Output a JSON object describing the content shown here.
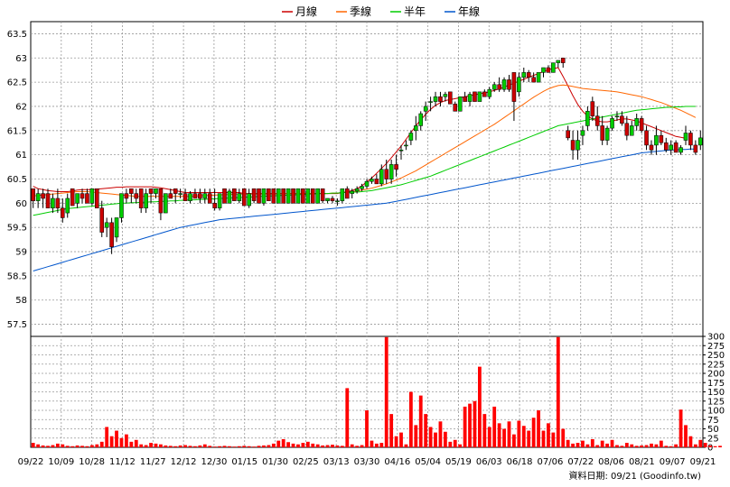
{
  "legend": [
    {
      "label": "月線",
      "color": "#cc0000"
    },
    {
      "label": "季線",
      "color": "#ff6600"
    },
    {
      "label": "半年",
      "color": "#00cc00"
    },
    {
      "label": "年線",
      "color": "#0055cc"
    }
  ],
  "source": "資料日期: 09/21 (Goodinfo.tw)",
  "chart_data": {
    "type": "candlestick+line+bar",
    "price_axis": {
      "ylim": [
        57.25,
        63.75
      ],
      "ticks": [
        57.5,
        58,
        58.5,
        59,
        59.5,
        60,
        60.5,
        61,
        61.5,
        62,
        62.5,
        63,
        63.5
      ]
    },
    "volume_axis": {
      "ylim": [
        0,
        300
      ],
      "ticks": [
        0,
        25,
        50,
        75,
        100,
        125,
        150,
        175,
        200,
        225,
        250,
        275,
        300
      ]
    },
    "x_labels": [
      "09/22",
      "10/09",
      "10/28",
      "11/12",
      "11/27",
      "12/12",
      "12/30",
      "01/15",
      "01/30",
      "02/25",
      "03/13",
      "03/30",
      "04/16",
      "05/04",
      "05/19",
      "06/03",
      "06/18",
      "07/06",
      "07/22",
      "08/06",
      "08/21",
      "09/07",
      "09/21"
    ],
    "grid": true,
    "up_color": "#00cc00",
    "down_color": "#cc0000",
    "volume_color": "#ff0000",
    "candles": [
      [
        60.3,
        60.3,
        59.9,
        60.05
      ],
      [
        60.05,
        60.3,
        59.9,
        60.2
      ],
      [
        60.2,
        60.3,
        59.9,
        60.1
      ],
      [
        60.2,
        60.3,
        59.9,
        59.9
      ],
      [
        59.9,
        60.2,
        59.8,
        60.1
      ],
      [
        60.1,
        60.3,
        59.8,
        59.9
      ],
      [
        59.9,
        60.1,
        59.6,
        59.7
      ],
      [
        59.8,
        60.2,
        59.7,
        60.1
      ],
      [
        60.3,
        60.3,
        59.95,
        59.95
      ],
      [
        60.0,
        60.2,
        59.9,
        60.2
      ],
      [
        60.2,
        60.3,
        60.0,
        60.1
      ],
      [
        60.2,
        60.3,
        60.0,
        60.0
      ],
      [
        60.0,
        60.3,
        59.95,
        60.3
      ],
      [
        60.3,
        60.3,
        59.9,
        59.9
      ],
      [
        59.9,
        60.05,
        59.3,
        59.4
      ],
      [
        59.5,
        59.7,
        59.3,
        59.6
      ],
      [
        59.6,
        59.7,
        58.95,
        59.1
      ],
      [
        59.3,
        59.7,
        59.2,
        59.7
      ],
      [
        59.7,
        60.2,
        59.6,
        60.2
      ],
      [
        60.2,
        60.3,
        60.0,
        60.1
      ],
      [
        60.3,
        60.3,
        60.0,
        60.2
      ],
      [
        60.2,
        60.3,
        60.0,
        60.1
      ],
      [
        60.3,
        60.3,
        59.8,
        59.9
      ],
      [
        59.9,
        60.3,
        59.8,
        60.2
      ],
      [
        60.3,
        60.3,
        60.0,
        60.2
      ],
      [
        60.2,
        60.3,
        60.1,
        60.3
      ],
      [
        60.3,
        60.3,
        59.65,
        59.8
      ],
      [
        59.8,
        60.2,
        59.8,
        60.2
      ],
      [
        60.2,
        60.3,
        60.1,
        60.1
      ],
      [
        60.3,
        60.3,
        60.0,
        60.2
      ],
      [
        60.2,
        60.3,
        60.1,
        60.2
      ],
      [
        60.2,
        60.3,
        60.05,
        60.05
      ],
      [
        60.05,
        60.25,
        60.0,
        60.2
      ],
      [
        60.2,
        60.3,
        60.1,
        60.1
      ],
      [
        60.2,
        60.3,
        60.0,
        60.1
      ],
      [
        60.1,
        60.3,
        60.0,
        60.2
      ],
      [
        60.2,
        60.3,
        60.0,
        60.0
      ],
      [
        60.0,
        60.3,
        59.85,
        59.9
      ],
      [
        59.9,
        60.2,
        59.85,
        60.2
      ],
      [
        60.3,
        60.3,
        60.0,
        60.0
      ],
      [
        60.0,
        60.3,
        60.0,
        60.25
      ],
      [
        60.3,
        60.3,
        60.05,
        60.05
      ],
      [
        60.05,
        60.3,
        60.0,
        60.2
      ],
      [
        60.3,
        60.3,
        59.95,
        59.95
      ],
      [
        59.95,
        60.3,
        59.9,
        60.2
      ],
      [
        60.3,
        60.3,
        60.0,
        60.05
      ],
      [
        60.3,
        60.3,
        60.0,
        60.0
      ],
      [
        60.0,
        60.3,
        59.95,
        60.3
      ],
      [
        60.3,
        60.3,
        60.05,
        60.05
      ],
      [
        60.3,
        60.3,
        60.0,
        60.0
      ],
      [
        60.0,
        60.3,
        60.0,
        60.3
      ],
      [
        60.3,
        60.3,
        60.0,
        60.0
      ],
      [
        60.0,
        60.3,
        60.0,
        60.3
      ],
      [
        60.3,
        60.3,
        60.0,
        60.0
      ],
      [
        60.0,
        60.3,
        60.0,
        60.3
      ],
      [
        60.3,
        60.3,
        60.0,
        60.0
      ],
      [
        60.0,
        60.3,
        60.0,
        60.3
      ],
      [
        60.3,
        60.3,
        60.0,
        60.0
      ],
      [
        60.0,
        60.3,
        60.0,
        60.3
      ],
      [
        60.3,
        60.3,
        60.0,
        60.05
      ],
      [
        60.05,
        60.1,
        60.0,
        60.1
      ],
      [
        60.1,
        60.15,
        60.0,
        60.05
      ],
      [
        60.05,
        60.1,
        59.95,
        60.05
      ],
      [
        60.05,
        60.3,
        60.0,
        60.3
      ],
      [
        60.3,
        60.35,
        60.1,
        60.1
      ],
      [
        60.2,
        60.3,
        60.1,
        60.25
      ],
      [
        60.25,
        60.35,
        60.2,
        60.3
      ],
      [
        60.3,
        60.4,
        60.25,
        60.35
      ],
      [
        60.35,
        60.5,
        60.3,
        60.45
      ],
      [
        60.45,
        60.55,
        60.4,
        60.5
      ],
      [
        60.5,
        60.6,
        60.4,
        60.4
      ],
      [
        60.4,
        60.8,
        60.35,
        60.7
      ],
      [
        60.7,
        60.9,
        60.4,
        60.5
      ],
      [
        60.5,
        60.9,
        60.4,
        60.8
      ],
      [
        60.8,
        61.0,
        60.55,
        60.7
      ],
      [
        61.1,
        61.2,
        60.9,
        61.1
      ],
      [
        61.2,
        61.3,
        61.1,
        61.2
      ],
      [
        61.3,
        61.5,
        61.2,
        61.45
      ],
      [
        61.5,
        61.8,
        61.3,
        61.6
      ],
      [
        61.6,
        61.9,
        61.5,
        61.85
      ],
      [
        61.9,
        62.1,
        61.7,
        62.0
      ],
      [
        62.1,
        62.2,
        61.9,
        62.1
      ],
      [
        62.1,
        62.3,
        62.0,
        62.2
      ],
      [
        62.2,
        62.3,
        62.0,
        62.1
      ],
      [
        62.2,
        62.3,
        62.1,
        62.25
      ],
      [
        62.3,
        62.3,
        62.05,
        62.05
      ],
      [
        62.05,
        62.1,
        61.9,
        61.9
      ],
      [
        61.9,
        62.2,
        61.9,
        62.2
      ],
      [
        62.2,
        62.3,
        62.1,
        62.1
      ],
      [
        62.1,
        62.3,
        62.0,
        62.25
      ],
      [
        62.3,
        62.3,
        62.1,
        62.1
      ],
      [
        62.1,
        62.3,
        62.1,
        62.3
      ],
      [
        62.3,
        62.35,
        62.2,
        62.2
      ],
      [
        62.2,
        62.4,
        62.15,
        62.35
      ],
      [
        62.35,
        62.5,
        62.3,
        62.45
      ],
      [
        62.45,
        62.6,
        62.3,
        62.35
      ],
      [
        62.35,
        62.6,
        62.3,
        62.55
      ],
      [
        62.55,
        62.65,
        62.3,
        62.35
      ],
      [
        62.7,
        62.7,
        61.7,
        62.1
      ],
      [
        62.3,
        62.7,
        62.2,
        62.6
      ],
      [
        62.6,
        62.8,
        62.5,
        62.7
      ],
      [
        62.7,
        62.75,
        62.5,
        62.6
      ],
      [
        62.6,
        62.7,
        62.5,
        62.5
      ],
      [
        62.5,
        62.7,
        62.5,
        62.7
      ],
      [
        62.7,
        62.8,
        62.6,
        62.8
      ],
      [
        62.8,
        62.85,
        62.7,
        62.7
      ],
      [
        62.7,
        62.9,
        62.7,
        62.9
      ],
      [
        62.9,
        62.95,
        62.8,
        62.95
      ],
      [
        63.0,
        63.0,
        62.8,
        62.9
      ],
      [
        61.5,
        61.6,
        61.3,
        61.35
      ],
      [
        61.3,
        61.5,
        60.9,
        61.1
      ],
      [
        61.1,
        61.5,
        60.9,
        61.3
      ],
      [
        61.4,
        61.6,
        61.2,
        61.5
      ],
      [
        61.6,
        62.0,
        61.5,
        61.9
      ],
      [
        62.1,
        62.2,
        61.7,
        61.8
      ],
      [
        61.8,
        62.0,
        61.5,
        61.6
      ],
      [
        61.6,
        61.8,
        61.2,
        61.3
      ],
      [
        61.3,
        61.6,
        61.2,
        61.55
      ],
      [
        61.55,
        61.8,
        61.5,
        61.75
      ],
      [
        61.8,
        61.9,
        61.7,
        61.8
      ],
      [
        61.8,
        61.9,
        61.6,
        61.65
      ],
      [
        61.65,
        61.8,
        61.3,
        61.4
      ],
      [
        61.4,
        61.7,
        61.4,
        61.6
      ],
      [
        61.6,
        61.85,
        61.5,
        61.75
      ],
      [
        61.75,
        61.8,
        61.45,
        61.5
      ],
      [
        61.5,
        61.6,
        61.1,
        61.2
      ],
      [
        61.2,
        61.3,
        61.0,
        61.1
      ],
      [
        61.2,
        61.6,
        61.0,
        61.4
      ],
      [
        61.4,
        61.5,
        61.2,
        61.25
      ],
      [
        61.25,
        61.35,
        61.05,
        61.1
      ],
      [
        61.1,
        61.3,
        61.0,
        61.2
      ],
      [
        61.25,
        61.3,
        61.05,
        61.05
      ],
      [
        61.05,
        61.2,
        61.0,
        61.15
      ],
      [
        61.3,
        61.6,
        61.2,
        61.45
      ],
      [
        61.45,
        61.5,
        61.1,
        61.2
      ],
      [
        61.2,
        61.3,
        61.0,
        61.05
      ],
      [
        61.2,
        61.5,
        61.1,
        61.35
      ]
    ],
    "ma20": [
      60.35,
      60.3,
      60.28,
      60.26,
      60.25,
      60.24,
      60.24,
      60.24,
      60.25,
      60.27,
      60.28,
      60.28,
      60.28,
      60.29,
      60.3,
      60.31,
      60.32,
      60.33,
      60.33,
      60.34,
      60.34,
      60.34,
      60.34,
      60.34,
      60.34,
      60.33,
      60.32,
      60.3,
      60.28,
      60.26,
      60.24,
      60.22,
      60.22,
      60.22,
      60.22,
      60.22,
      60.22,
      60.22,
      60.22,
      60.22,
      60.22,
      60.22,
      60.22,
      60.2,
      60.2,
      60.2,
      60.2,
      60.2,
      60.2,
      60.2,
      60.2,
      60.2,
      60.2,
      60.2,
      60.2,
      60.2,
      60.2,
      60.2,
      60.2,
      60.2,
      60.2,
      60.2,
      60.2,
      60.22,
      60.24,
      60.26,
      60.3,
      60.36,
      60.44,
      60.52,
      60.62,
      60.72,
      60.82,
      60.94,
      61.06,
      61.18,
      61.32,
      61.46,
      61.6,
      61.72,
      61.84,
      61.94,
      62.02,
      62.08,
      62.12,
      62.14,
      62.16,
      62.18,
      62.2,
      62.22,
      62.24,
      62.26,
      62.28,
      62.3,
      62.33,
      62.36,
      62.4,
      62.44,
      62.48,
      62.52,
      62.56,
      62.6,
      62.64,
      62.68,
      62.72,
      62.76,
      62.78,
      62.8,
      62.62,
      62.42,
      62.22,
      62.04,
      61.9,
      61.8,
      61.74,
      61.7,
      61.68,
      61.68,
      61.7,
      61.72,
      61.74,
      61.74,
      61.72,
      61.7,
      61.66,
      61.62,
      61.58,
      61.54,
      61.5,
      61.46,
      61.42,
      61.38,
      61.36,
      61.34
    ],
    "ma60": [
      60.15,
      60.16,
      60.17,
      60.18,
      60.19,
      60.2,
      60.21,
      60.22,
      60.23,
      60.24,
      60.24,
      60.24,
      60.23,
      60.22,
      60.21,
      60.2,
      60.19,
      60.18,
      60.17,
      60.16,
      60.15,
      60.14,
      60.14,
      60.14,
      60.14,
      60.14,
      60.14,
      60.14,
      60.14,
      60.14,
      60.14,
      60.14,
      60.14,
      60.15,
      60.15,
      60.16,
      60.16,
      60.17,
      60.17,
      60.18,
      60.18,
      60.19,
      60.19,
      60.19,
      60.19,
      60.19,
      60.19,
      60.19,
      60.19,
      60.19,
      60.19,
      60.2,
      60.2,
      60.2,
      60.2,
      60.2,
      60.2,
      60.2,
      60.2,
      60.2,
      60.2,
      60.21,
      60.21,
      60.22,
      60.23,
      60.24,
      60.25,
      60.27,
      60.29,
      60.31,
      60.34,
      60.37,
      60.4,
      60.44,
      60.48,
      60.52,
      60.57,
      60.62,
      60.67,
      60.73,
      60.79,
      60.85,
      60.91,
      60.97,
      61.03,
      61.09,
      61.15,
      61.21,
      61.27,
      61.33,
      61.39,
      61.45,
      61.51,
      61.57,
      61.63,
      61.7,
      61.77,
      61.84,
      61.91,
      61.98,
      62.05,
      62.12,
      62.19,
      62.25,
      62.31,
      62.36,
      62.4,
      62.43,
      62.44,
      62.43,
      62.41,
      62.39,
      62.37,
      62.36,
      62.35,
      62.34,
      62.33,
      62.32,
      62.31,
      62.3,
      62.28,
      62.26,
      62.24,
      62.22,
      62.2,
      62.17,
      62.14,
      62.11,
      62.08,
      62.04,
      62.0,
      61.96,
      61.92,
      61.87,
      61.82,
      61.77
    ],
    "ma120": [
      59.75,
      59.77,
      59.79,
      59.81,
      59.83,
      59.85,
      59.87,
      59.89,
      59.9,
      59.91,
      59.92,
      59.93,
      59.94,
      59.95,
      59.96,
      59.97,
      59.98,
      59.99,
      60.0,
      60.0,
      60.01,
      60.01,
      60.02,
      60.02,
      60.03,
      60.03,
      60.04,
      60.04,
      60.05,
      60.05,
      60.06,
      60.06,
      60.07,
      60.07,
      60.08,
      60.08,
      60.09,
      60.09,
      60.1,
      60.1,
      60.11,
      60.11,
      60.12,
      60.12,
      60.13,
      60.13,
      60.14,
      60.14,
      60.15,
      60.15,
      60.16,
      60.16,
      60.17,
      60.17,
      60.18,
      60.18,
      60.19,
      60.19,
      60.2,
      60.2,
      60.2,
      60.21,
      60.21,
      60.22,
      60.22,
      60.23,
      60.23,
      60.24,
      60.25,
      60.26,
      60.28,
      60.3,
      60.32,
      60.34,
      60.36,
      60.38,
      60.41,
      60.44,
      60.47,
      60.5,
      60.53,
      60.56,
      60.6,
      60.64,
      60.68,
      60.72,
      60.76,
      60.8,
      60.84,
      60.88,
      60.92,
      60.96,
      61.0,
      61.04,
      61.08,
      61.12,
      61.16,
      61.2,
      61.24,
      61.28,
      61.32,
      61.36,
      61.4,
      61.44,
      61.48,
      61.52,
      61.56,
      61.6,
      61.62,
      61.64,
      61.66,
      61.68,
      61.7,
      61.72,
      61.74,
      61.76,
      61.78,
      61.8,
      61.82,
      61.84,
      61.86,
      61.88,
      61.9,
      61.92,
      61.93,
      61.94,
      61.95,
      61.96,
      61.97,
      61.98,
      61.98,
      61.99,
      61.99,
      62.0,
      62.0,
      62.0
    ],
    "ma240": [
      58.6,
      58.63,
      58.66,
      58.69,
      58.72,
      58.75,
      58.78,
      58.81,
      58.84,
      58.87,
      58.9,
      58.93,
      58.96,
      58.99,
      59.02,
      59.05,
      59.08,
      59.11,
      59.14,
      59.17,
      59.2,
      59.23,
      59.26,
      59.29,
      59.32,
      59.35,
      59.38,
      59.41,
      59.44,
      59.47,
      59.5,
      59.52,
      59.54,
      59.56,
      59.58,
      59.6,
      59.62,
      59.64,
      59.66,
      59.67,
      59.68,
      59.69,
      59.7,
      59.71,
      59.72,
      59.73,
      59.74,
      59.75,
      59.76,
      59.77,
      59.78,
      59.79,
      59.8,
      59.81,
      59.82,
      59.83,
      59.84,
      59.85,
      59.86,
      59.87,
      59.88,
      59.89,
      59.9,
      59.91,
      59.92,
      59.93,
      59.94,
      59.95,
      59.96,
      59.97,
      59.98,
      59.99,
      60.0,
      60.02,
      60.04,
      60.06,
      60.08,
      60.1,
      60.12,
      60.14,
      60.16,
      60.18,
      60.2,
      60.22,
      60.24,
      60.26,
      60.28,
      60.3,
      60.32,
      60.34,
      60.36,
      60.38,
      60.4,
      60.42,
      60.44,
      60.46,
      60.48,
      60.5,
      60.52,
      60.54,
      60.56,
      60.58,
      60.6,
      60.62,
      60.64,
      60.66,
      60.68,
      60.7,
      60.72,
      60.74,
      60.76,
      60.78,
      60.8,
      60.82,
      60.84,
      60.86,
      60.88,
      60.9,
      60.92,
      60.94,
      60.96,
      60.98,
      61.0,
      61.02,
      61.04,
      61.05,
      61.06,
      61.07,
      61.08,
      61.09,
      61.1,
      61.1,
      61.11,
      61.11,
      61.12,
      61.12
    ],
    "volumes": [
      12,
      8,
      5,
      4,
      6,
      10,
      8,
      4,
      3,
      5,
      4,
      3,
      6,
      8,
      15,
      55,
      30,
      45,
      25,
      35,
      15,
      20,
      8,
      6,
      12,
      10,
      8,
      5,
      4,
      3,
      5,
      6,
      4,
      3,
      5,
      8,
      4,
      2,
      3,
      4,
      3,
      2,
      3,
      4,
      3,
      2,
      4,
      5,
      6,
      10,
      18,
      22,
      14,
      10,
      8,
      12,
      15,
      10,
      8,
      5,
      6,
      7,
      5,
      4,
      160,
      8,
      4,
      6,
      100,
      18,
      10,
      12,
      298,
      90,
      30,
      40,
      8,
      150,
      60,
      140,
      90,
      55,
      40,
      70,
      42,
      15,
      20,
      8,
      110,
      118,
      125,
      218,
      90,
      55,
      110,
      65,
      50,
      70,
      35,
      72,
      58,
      45,
      80,
      100,
      45,
      65,
      40,
      298,
      50,
      20,
      10,
      12,
      18,
      8,
      22,
      6,
      18,
      10,
      20,
      6,
      4,
      12,
      8,
      4,
      5,
      6,
      10,
      8,
      18,
      4,
      3,
      8,
      102,
      60,
      30,
      8,
      20,
      12,
      5,
      3,
      4
    ]
  }
}
